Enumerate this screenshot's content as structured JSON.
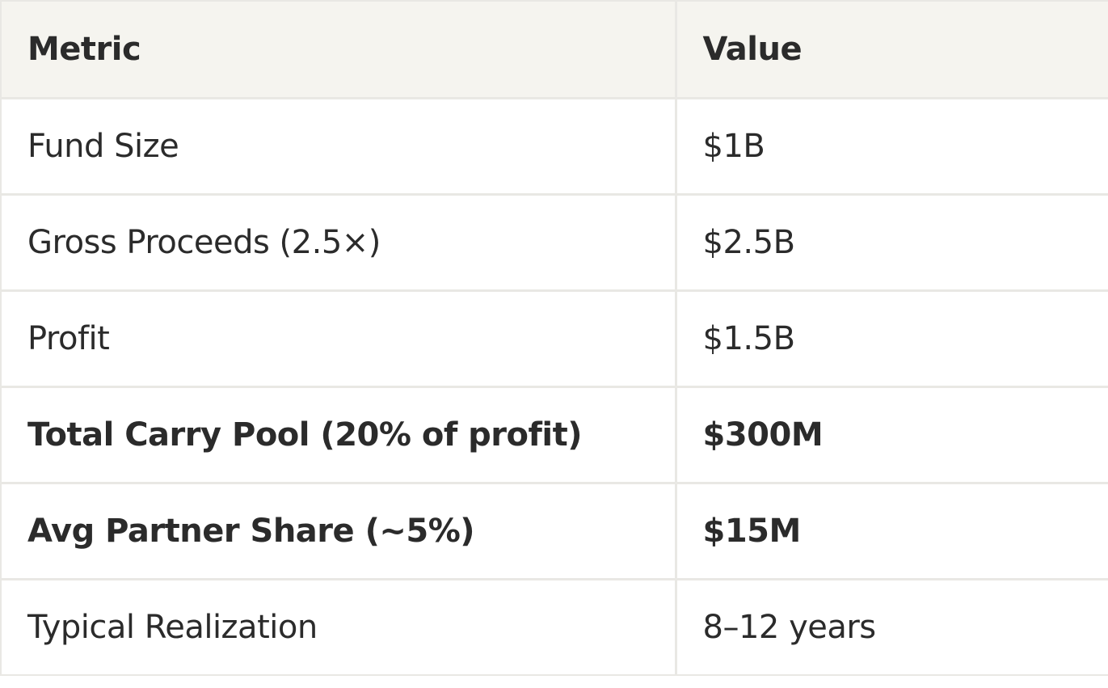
{
  "table": {
    "headers": [
      "Metric",
      "Value"
    ],
    "rows": [
      {
        "metric": "Fund Size",
        "value": "$1B",
        "bold": false
      },
      {
        "metric": "Gross Proceeds (2.5×)",
        "value": "$2.5B",
        "bold": false
      },
      {
        "metric": "Profit",
        "value": "$1.5B",
        "bold": false
      },
      {
        "metric": "Total Carry Pool (20% of profit)",
        "value": "$300M",
        "bold": true
      },
      {
        "metric": "Avg Partner Share (~5%)",
        "value": "$15M",
        "bold": true
      },
      {
        "metric": "Typical Realization",
        "value": "8–12 years",
        "bold": false
      }
    ]
  },
  "colors": {
    "header_background": "#f5f4ef",
    "border": "#e9e8e4",
    "text": "#2b2b2b"
  }
}
